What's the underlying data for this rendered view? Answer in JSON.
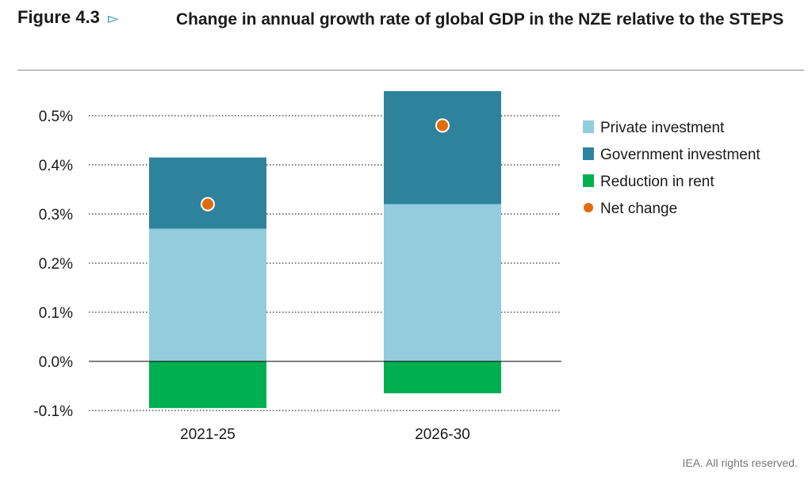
{
  "header": {
    "figure_label": "Figure 4.3",
    "figure_arrow": "▻",
    "title": "Change in annual growth rate of global GDP in the NZE relative to the STEPS"
  },
  "credit": "IEA. All rights reserved.",
  "colors": {
    "private": "#93cddd",
    "government": "#2e839c",
    "rent": "#00b050",
    "net": "#e36c0a",
    "grid": "#808080",
    "axis": "#000000"
  },
  "chart_data": {
    "type": "bar",
    "stacked": true,
    "title": "",
    "xlabel": "",
    "ylabel": "",
    "categories": [
      "2021-25",
      "2026-30"
    ],
    "series": [
      {
        "name": "Private investment",
        "values": [
          0.27,
          0.32
        ],
        "color_key": "private"
      },
      {
        "name": "Government investment",
        "values": [
          0.145,
          0.23
        ],
        "color_key": "government"
      },
      {
        "name": "Reduction in rent",
        "values": [
          -0.095,
          -0.065
        ],
        "color_key": "rent"
      }
    ],
    "points": {
      "name": "Net change",
      "values": [
        0.32,
        0.48
      ],
      "color_key": "net"
    },
    "ylim": [
      -0.1,
      0.5
    ],
    "yticks": [
      -0.1,
      0.0,
      0.1,
      0.2,
      0.3,
      0.4,
      0.5
    ],
    "ytick_labels": [
      "-0.1%",
      "0.0%",
      "0.1%",
      "0.2%",
      "0.3%",
      "0.4%",
      "0.5%"
    ],
    "grid": "dotted horizontal",
    "legend_position": "right"
  }
}
